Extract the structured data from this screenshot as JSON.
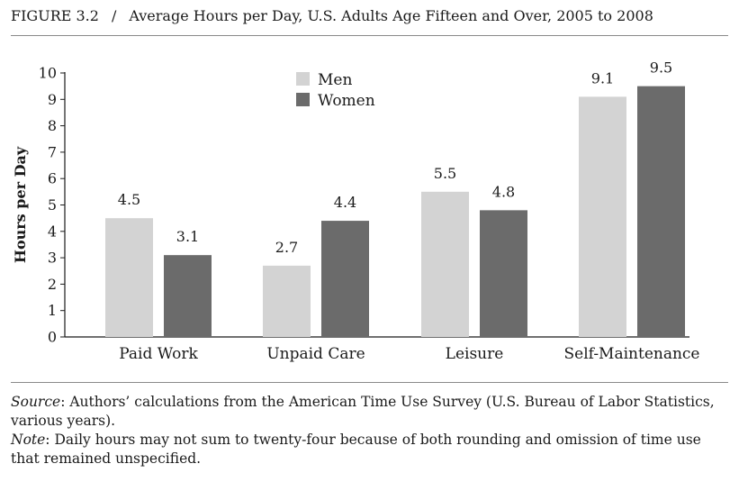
{
  "header": {
    "figure_label": "FIGURE 3.2",
    "separator": "/",
    "title": "Average Hours per Day, U.S. Adults Age Fifteen and Over, 2005 to 2008"
  },
  "chart_data": {
    "type": "bar",
    "title": "Average Hours per Day, U.S. Adults Age Fifteen and Over, 2005 to 2008",
    "categories": [
      "Paid Work",
      "Unpaid Care",
      "Leisure",
      "Self-Maintenance"
    ],
    "series": [
      {
        "name": "Men",
        "values": [
          4.5,
          2.7,
          5.5,
          9.1
        ],
        "labels": [
          "4.5",
          "2.7",
          "5.5",
          "9.1"
        ],
        "color": "#d3d3d3"
      },
      {
        "name": "Women",
        "values": [
          3.1,
          4.4,
          4.8,
          9.5
        ],
        "labels": [
          "3.1",
          "4.4",
          "4.8",
          "9.5"
        ],
        "color": "#6b6b6b"
      }
    ],
    "xlabel": "",
    "ylabel": "Hours per Day",
    "ylim": [
      0,
      10
    ],
    "yticks": [
      "0",
      "1",
      "2",
      "3",
      "4",
      "5",
      "6",
      "7",
      "8",
      "9",
      "10"
    ],
    "legend_position": "top-center",
    "grid": false
  },
  "notes": {
    "source_label": "Source",
    "source_text": ": Authors’ calculations from the American Time Use Survey (U.S. Bureau of Labor Statistics, various years).",
    "note_label": "Note",
    "note_text": ": Daily hours may not sum to twenty-four because of both rounding and omission of time use that remained unspecified."
  }
}
